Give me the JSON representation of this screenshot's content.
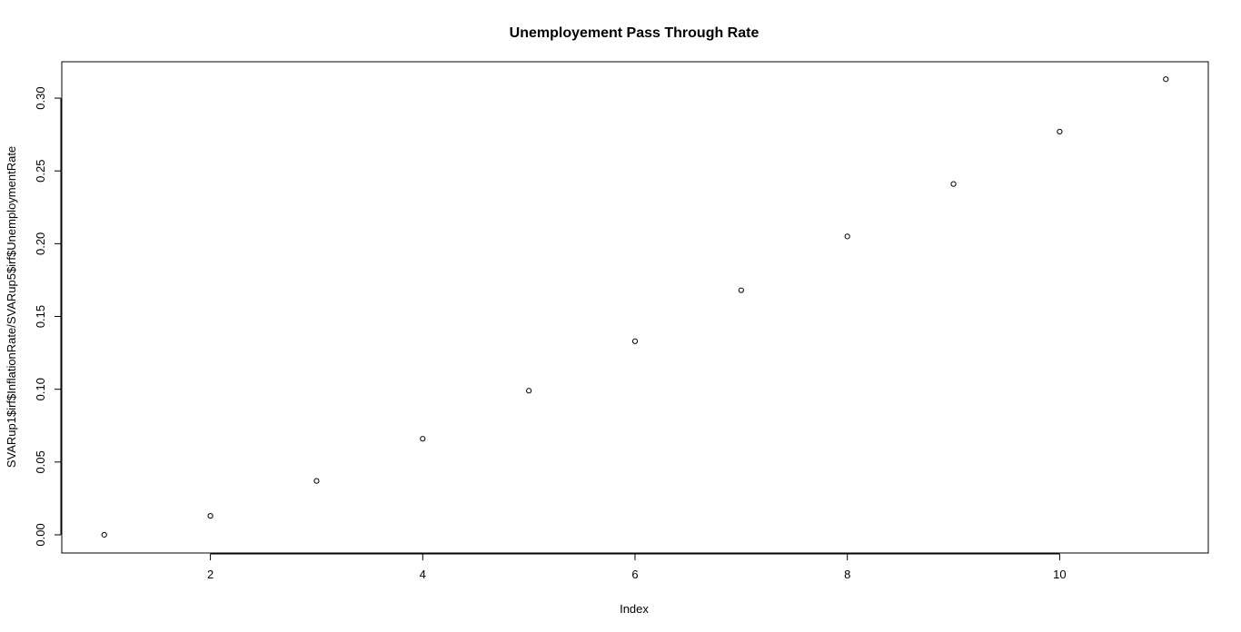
{
  "chart_data": {
    "type": "scatter",
    "title": "Unemployement Pass Through Rate",
    "xlabel": "Index",
    "ylabel": "SVARup1$irf$InflationRate/SVARup5$irf$UnemploymentRate",
    "xlim": [
      0.6,
      11.4
    ],
    "ylim": [
      -0.0125,
      0.325
    ],
    "xticks": [
      2,
      4,
      6,
      8,
      10
    ],
    "xtick_labels": [
      "2",
      "4",
      "6",
      "8",
      "10"
    ],
    "yticks": [
      0.0,
      0.05,
      0.1,
      0.15,
      0.2,
      0.25,
      0.3
    ],
    "ytick_labels": [
      "0.00",
      "0.05",
      "0.10",
      "0.15",
      "0.20",
      "0.25",
      "0.30"
    ],
    "grid": false,
    "legend": "none",
    "marker": "open-circle",
    "series": [
      {
        "x": [
          1,
          2,
          3,
          4,
          5,
          6,
          7,
          8,
          9,
          10,
          11
        ],
        "y": [
          0.0,
          0.013,
          0.037,
          0.066,
          0.099,
          0.133,
          0.168,
          0.205,
          0.241,
          0.277,
          0.313
        ]
      }
    ]
  }
}
